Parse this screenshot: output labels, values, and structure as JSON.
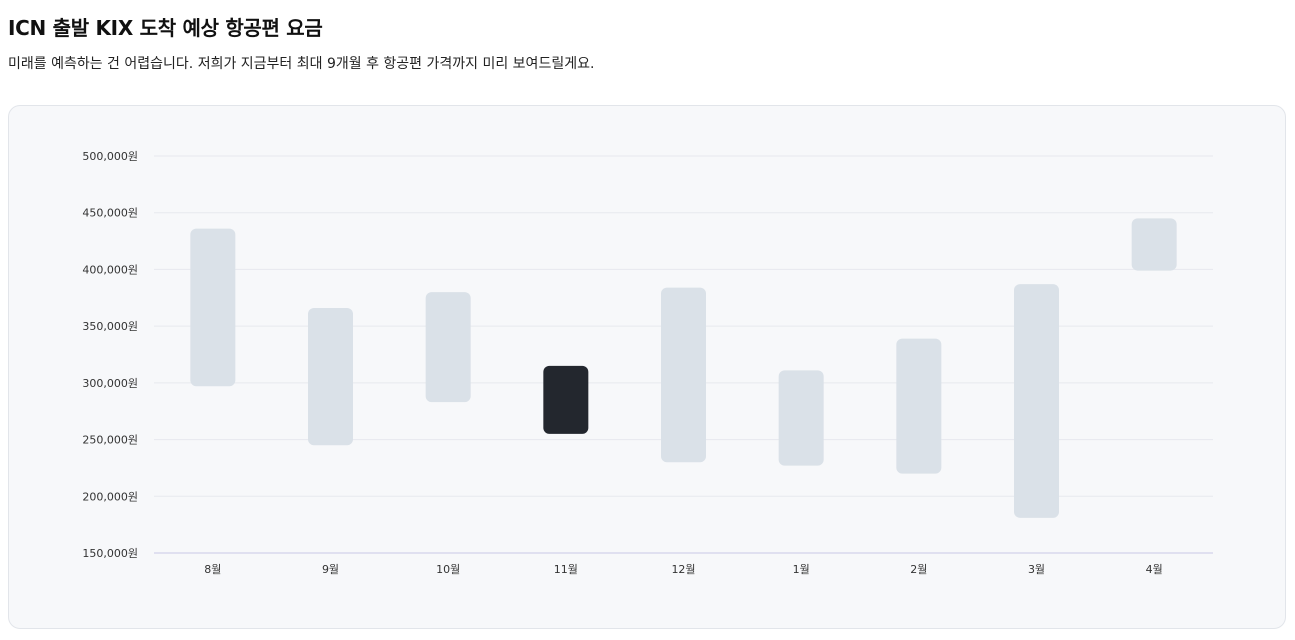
{
  "header": {
    "title": "ICN 출발 KIX 도착 예상 항공편 요금",
    "subtitle": "미래를 예측하는 건 어렵습니다. 저희가 지금부터 최대 9개월 후 항공편 가격까지 미리 보여드릴게요."
  },
  "chart_data": {
    "type": "bar",
    "subtype": "floating-range",
    "title": "",
    "xlabel": "",
    "ylabel": "",
    "categories": [
      "8월",
      "9월",
      "10월",
      "11월",
      "12월",
      "1월",
      "2월",
      "3월",
      "4월"
    ],
    "ranges": [
      [
        297000,
        436000
      ],
      [
        245000,
        366000
      ],
      [
        283000,
        380000
      ],
      [
        255000,
        315000
      ],
      [
        230000,
        384000
      ],
      [
        227000,
        311000
      ],
      [
        220000,
        339000
      ],
      [
        181000,
        387000
      ],
      [
        399000,
        445000
      ]
    ],
    "highlight_index": 3,
    "ylim": [
      150000,
      500000
    ],
    "yticks": [
      150000,
      200000,
      250000,
      300000,
      350000,
      400000,
      450000,
      500000
    ],
    "ytick_labels": [
      "150,000원",
      "200,000원",
      "250,000원",
      "300,000원",
      "350,000원",
      "400,000원",
      "450,000원",
      "500,000원"
    ],
    "grid": true,
    "legend": "none",
    "colors": {
      "bar": "#dae1e8",
      "highlight": "#23272e",
      "grid": "#e7e9ee",
      "baseline": "#c9c7e6",
      "card_background": "#f7f8fa"
    }
  }
}
